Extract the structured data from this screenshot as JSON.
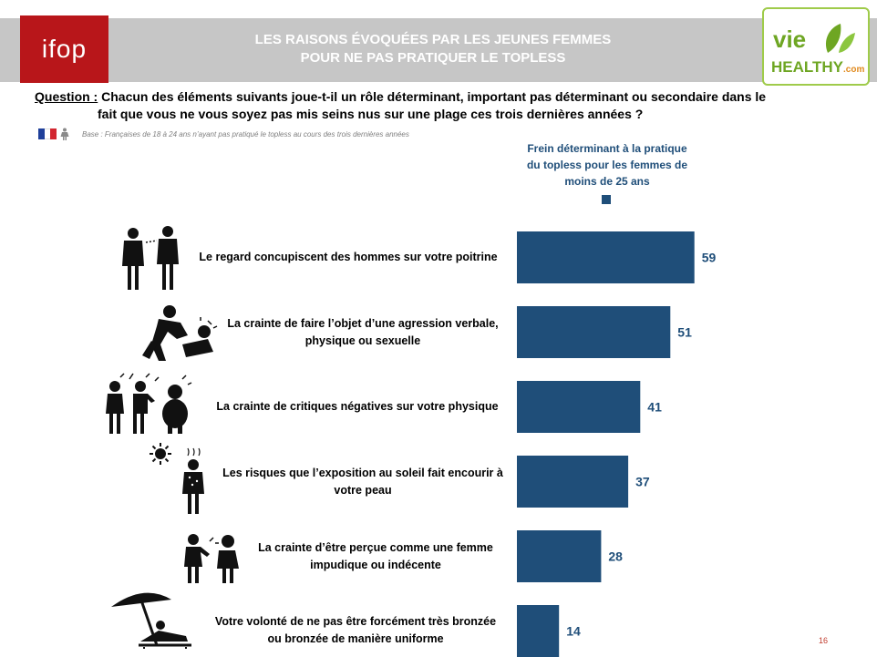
{
  "header": {
    "logo_text": "ifop",
    "title_line1": "LES RAISONS ÉVOQUÉES PAR LES JEUNES FEMMES",
    "title_line2": "POUR NE PAS PRATIQUER LE TOPLESS",
    "partner_logo": {
      "vie": "vie",
      "healthy": "HEALTHY",
      "com": ".com"
    },
    "colors": {
      "band": "#c6c6c6",
      "ifop": "#b8161a",
      "partner": "#6ea623"
    }
  },
  "question": {
    "label": "Question :",
    "line1": "Chacun des éléments suivants joue-t-il un rôle déterminant, important pas déterminant ou secondaire dans le",
    "line2": "fait que vous ne vous soyez pas mis seins nus sur une plage ces trois dernières années ?"
  },
  "base": "Base : Françaises de 18 à 24 ans n’ayant pas pratiqué le topless au cours des trois dernières années",
  "chart_data": {
    "type": "bar",
    "orientation": "horizontal",
    "series": [
      {
        "name": "Frein déterminant à la pratique du topless pour les femmes de moins de 25 ans",
        "color": "#1f4e79"
      }
    ],
    "series_header_lines": [
      "Frein déterminant à la pratique",
      "du topless pour les femmes de",
      "moins de 25 ans"
    ],
    "categories": [
      {
        "lines": [
          "Le regard concupiscent des hommes sur votre poitrine"
        ],
        "icon": "men-staring-icon"
      },
      {
        "lines": [
          "La crainte de faire l’objet d’une agression verbale,",
          "physique ou sexuelle"
        ],
        "icon": "aggression-icon"
      },
      {
        "lines": [
          "La crainte de critiques négatives sur votre physique"
        ],
        "icon": "criticism-icon"
      },
      {
        "lines": [
          "Les risques que l’exposition au soleil fait encourir à",
          "votre peau"
        ],
        "icon": "sun-exposure-icon"
      },
      {
        "lines": [
          "La crainte d’être perçue comme une femme",
          "impudique ou indécente"
        ],
        "icon": "judgment-icon"
      },
      {
        "lines": [
          "Votre volonté de ne pas être forcément très bronzée",
          "ou bronzée de manière uniforme"
        ],
        "icon": "sunbathing-icon"
      }
    ],
    "values": [
      59,
      51,
      41,
      37,
      28,
      14
    ],
    "data_labels": [
      "59",
      "51",
      "41",
      "37",
      "28",
      "14"
    ],
    "xlim": [
      0,
      100
    ]
  },
  "page_number": "16"
}
